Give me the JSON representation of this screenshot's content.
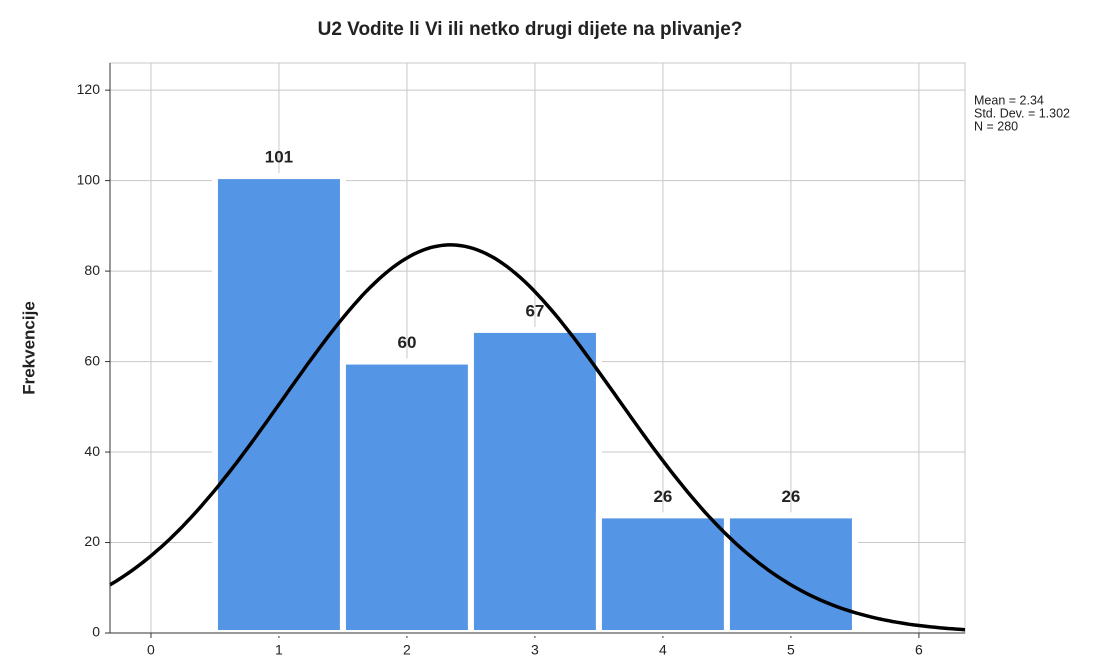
{
  "chart_data": {
    "type": "histogram",
    "title": "U2 Vodite li Vi ili netko drugi dijete na plivanje?",
    "y_label": "Frekvencije",
    "bins": [
      0.5,
      1.5,
      2.5,
      3.5,
      4.5,
      5.5
    ],
    "counts": [
      101,
      60,
      67,
      26,
      26
    ],
    "color": "#5595e5",
    "xlim": [
      -0.32,
      6.36
    ],
    "xticks": [
      0,
      1,
      2,
      3,
      4,
      5,
      6
    ],
    "ylim": [
      0,
      126
    ],
    "yticks": [
      0,
      20,
      40,
      60,
      80,
      100,
      120
    ],
    "grid": true,
    "normal_curve": {
      "color": "#000000",
      "mean": {
        "value": 2.34,
        "label": "Mean = 2.34"
      },
      "std_dev": {
        "value": 1.302,
        "label": "Std. Dev. = 1.302"
      },
      "n": {
        "value": 280,
        "label": "N = 280"
      }
    }
  }
}
